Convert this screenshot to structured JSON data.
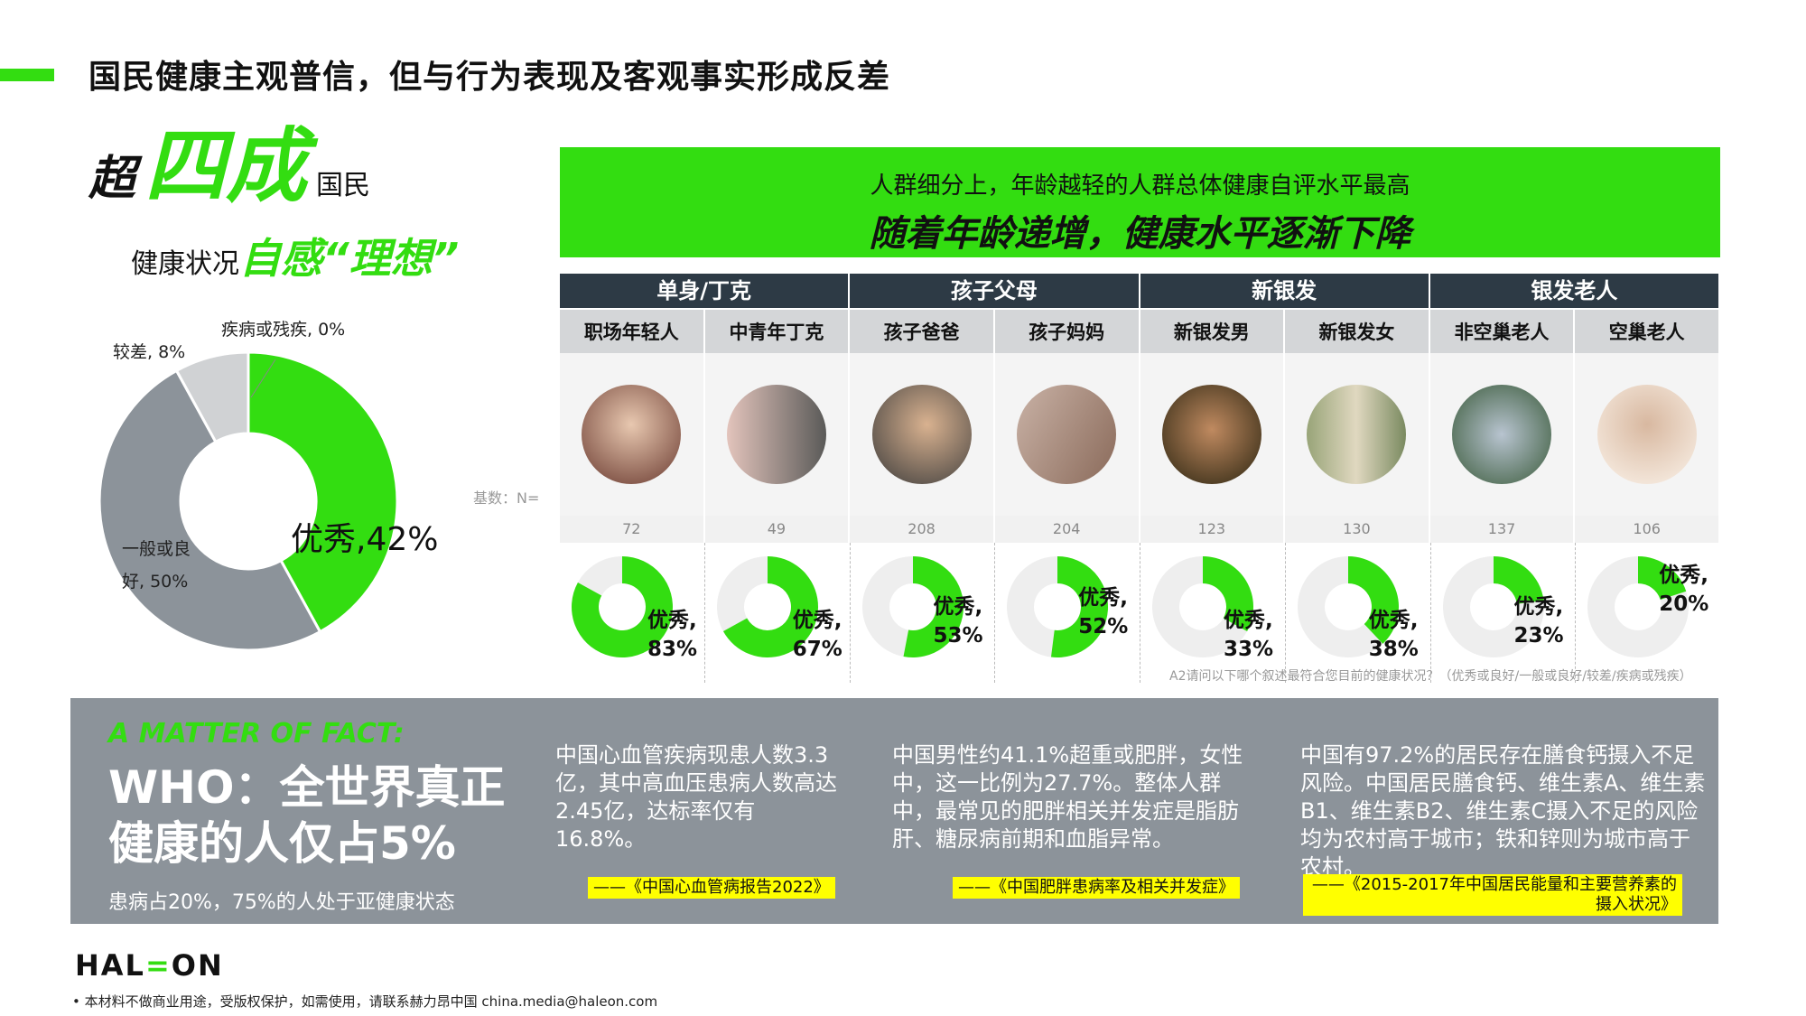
{
  "title": "国民健康主观普信，但与行为表现及客观事实形成反差",
  "headline": {
    "chao": "超",
    "four": "四成",
    "guomin": "国民",
    "line2": "健康状况",
    "green2": "自感“理想”"
  },
  "colors": {
    "accent": "#33dd11",
    "dark": "#2d3a45",
    "gray": "#8c939a",
    "light": "#d0d2d4",
    "highlight": "#ffff00"
  },
  "chart_data": [
    {
      "type": "pie",
      "variant": "donut",
      "categories": [
        "优秀",
        "一般或良好",
        "较差",
        "疾病或残疾"
      ],
      "values": [
        42,
        50,
        8,
        0
      ],
      "labels": [
        "优秀,42%",
        "一般或良好, 50%",
        "较差, 8%",
        "疾病或残疾, 0%"
      ],
      "colors": [
        "#33dd11",
        "#8c939a",
        "#d0d2d4",
        "#d0d2d4"
      ]
    },
    {
      "type": "pie",
      "variant": "donut-small-multiples",
      "series_metric": "优秀",
      "categories": [
        "职场年轻人",
        "中青年丁克",
        "孩子爸爸",
        "孩子妈妈",
        "新银发男",
        "新银发女",
        "非空巢老人",
        "空巢老人"
      ],
      "values": [
        83,
        67,
        53,
        52,
        33,
        38,
        23,
        20
      ],
      "labels": [
        "优秀,\n83%",
        "优秀,\n67%",
        "优秀,\n53%",
        "优秀,\n52%",
        "优秀,\n33%",
        "优秀,\n38%",
        "优秀,\n23%",
        "优秀,\n20%"
      ]
    }
  ],
  "banner": {
    "line1": "人群细分上，年龄越轻的人群总体健康自评水平最高",
    "line2": "随着年龄递增，健康水平逐渐下降"
  },
  "table": {
    "groups": [
      "单身/丁克",
      "孩子父母",
      "新银发",
      "银发老人"
    ],
    "segments": [
      "职场年轻人",
      "中青年丁克",
      "孩子爸爸",
      "孩子妈妈",
      "新银发男",
      "新银发女",
      "非空巢老人",
      "空巢老人"
    ],
    "n_label": "基数：N=",
    "n": [
      "72",
      "49",
      "208",
      "204",
      "123",
      "130",
      "137",
      "106"
    ],
    "photo_icons": [
      "young-woman-photo",
      "couple-photo",
      "father-child-photo",
      "mother-child-photo",
      "man-photo",
      "woman-photo",
      "elderly-couple-photo",
      "elderly-man-photo"
    ]
  },
  "question_note": "A2请问以下哪个叙述最符合您目前的健康状况？（优秀或良好/一般或良好/较差/疾病或残疾）",
  "fact": {
    "tag": "A MATTER OF FACT:",
    "who": "WHO：全世界真正健康的人仅占5%",
    "who_sub": "患病占20%，75%的人处于亚健康状态",
    "items": [
      {
        "text": "中国心血管疾病现患人数3.3亿，其中高血压患病人数高达2.45亿，达标率仅有16.8%。",
        "source": "——《中国心血管病报告2022》"
      },
      {
        "text": "中国男性约41.1%超重或肥胖，女性中，这一比例为27.7%。整体人群中，最常见的肥胖相关并发症是脂肪肝、糖尿病前期和血脂异常。",
        "source": "——《中国肥胖患病率及相关并发症》"
      },
      {
        "text": "中国有97.2%的居民存在膳食钙摄入不足风险。中国居民膳食钙、维生素A、维生素B1、维生素B2、维生素C摄入不足的风险均为农村高于城市；铁和锌则为城市高于农村。",
        "source": "——《2015-2017年中国居民能量和主要营养素的摄入状况》"
      }
    ]
  },
  "logo": "HALEON",
  "footer": "本材料不做商业用途，受版权保护，如需使用，请联系赫力昂中国 china.media@haleon.com"
}
